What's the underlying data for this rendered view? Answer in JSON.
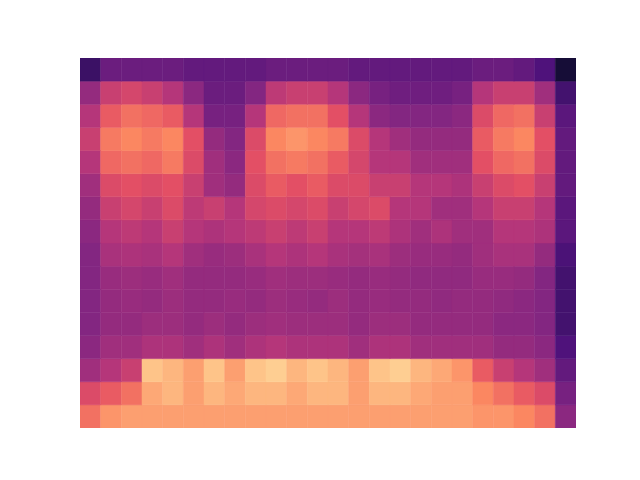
{
  "chart_data": {
    "type": "heatmap",
    "color": "magma",
    "tick_labels": false,
    "xlim": [
      0,
      24
    ],
    "ylim": [
      0,
      16
    ],
    "color_range": [
      0,
      1
    ],
    "cells": [
      [
        0.7,
        0.78,
        0.8,
        0.8,
        0.8,
        0.8,
        0.8,
        0.8,
        0.8,
        0.8,
        0.8,
        0.8,
        0.8,
        0.8,
        0.8,
        0.8,
        0.8,
        0.8,
        0.8,
        0.78,
        0.78,
        0.75,
        0.7,
        0.4
      ],
      [
        0.6,
        0.65,
        0.7,
        0.82,
        0.85,
        0.8,
        0.85,
        0.82,
        0.85,
        0.85,
        0.82,
        0.85,
        0.85,
        0.8,
        0.85,
        0.85,
        0.82,
        0.8,
        0.8,
        0.75,
        0.7,
        0.65,
        0.6,
        0.35
      ],
      [
        0.45,
        0.5,
        0.55,
        0.88,
        0.85,
        0.8,
        0.88,
        0.8,
        0.88,
        0.9,
        0.85,
        0.88,
        0.85,
        0.8,
        0.88,
        0.9,
        0.85,
        0.82,
        0.78,
        0.65,
        0.55,
        0.5,
        0.45,
        0.3
      ],
      [
        0.4,
        0.45,
        0.45,
        0.48,
        0.48,
        0.45,
        0.48,
        0.45,
        0.48,
        0.5,
        0.48,
        0.48,
        0.48,
        0.45,
        0.48,
        0.48,
        0.45,
        0.45,
        0.45,
        0.45,
        0.42,
        0.42,
        0.4,
        0.25
      ],
      [
        0.38,
        0.42,
        0.42,
        0.44,
        0.44,
        0.42,
        0.44,
        0.42,
        0.44,
        0.45,
        0.44,
        0.44,
        0.44,
        0.42,
        0.44,
        0.44,
        0.42,
        0.42,
        0.42,
        0.42,
        0.4,
        0.4,
        0.38,
        0.22
      ],
      [
        0.38,
        0.42,
        0.43,
        0.42,
        0.44,
        0.42,
        0.42,
        0.43,
        0.42,
        0.44,
        0.43,
        0.42,
        0.44,
        0.42,
        0.43,
        0.42,
        0.42,
        0.41,
        0.42,
        0.42,
        0.41,
        0.4,
        0.38,
        0.22
      ],
      [
        0.38,
        0.43,
        0.44,
        0.43,
        0.45,
        0.42,
        0.42,
        0.42,
        0.43,
        0.45,
        0.44,
        0.44,
        0.43,
        0.42,
        0.43,
        0.42,
        0.41,
        0.41,
        0.41,
        0.43,
        0.43,
        0.42,
        0.38,
        0.22
      ],
      [
        0.38,
        0.47,
        0.48,
        0.47,
        0.5,
        0.45,
        0.43,
        0.44,
        0.47,
        0.5,
        0.48,
        0.5,
        0.47,
        0.46,
        0.47,
        0.44,
        0.43,
        0.43,
        0.42,
        0.45,
        0.47,
        0.47,
        0.42,
        0.24
      ],
      [
        0.4,
        0.5,
        0.52,
        0.5,
        0.55,
        0.5,
        0.48,
        0.5,
        0.52,
        0.55,
        0.52,
        0.55,
        0.5,
        0.5,
        0.52,
        0.48,
        0.45,
        0.48,
        0.45,
        0.45,
        0.5,
        0.5,
        0.48,
        0.28
      ],
      [
        0.42,
        0.55,
        0.58,
        0.55,
        0.6,
        0.52,
        0.55,
        0.5,
        0.58,
        0.6,
        0.58,
        0.6,
        0.55,
        0.58,
        0.6,
        0.5,
        0.5,
        0.45,
        0.45,
        0.5,
        0.55,
        0.55,
        0.5,
        0.28
      ],
      [
        0.45,
        0.6,
        0.62,
        0.6,
        0.62,
        0.55,
        0.45,
        0.42,
        0.6,
        0.65,
        0.62,
        0.65,
        0.6,
        0.6,
        0.55,
        0.55,
        0.5,
        0.5,
        0.48,
        0.55,
        0.6,
        0.62,
        0.55,
        0.3
      ],
      [
        0.5,
        0.68,
        0.7,
        0.68,
        0.72,
        0.6,
        0.45,
        0.4,
        0.62,
        0.7,
        0.72,
        0.7,
        0.65,
        0.58,
        0.5,
        0.5,
        0.45,
        0.45,
        0.45,
        0.62,
        0.68,
        0.7,
        0.6,
        0.3
      ],
      [
        0.55,
        0.72,
        0.75,
        0.72,
        0.75,
        0.62,
        0.42,
        0.38,
        0.6,
        0.75,
        0.78,
        0.75,
        0.72,
        0.6,
        0.5,
        0.45,
        0.42,
        0.42,
        0.42,
        0.65,
        0.72,
        0.75,
        0.62,
        0.3
      ],
      [
        0.5,
        0.65,
        0.7,
        0.68,
        0.65,
        0.5,
        0.35,
        0.35,
        0.5,
        0.68,
        0.7,
        0.7,
        0.62,
        0.5,
        0.4,
        0.38,
        0.38,
        0.38,
        0.4,
        0.6,
        0.68,
        0.7,
        0.55,
        0.28
      ],
      [
        0.42,
        0.55,
        0.58,
        0.55,
        0.5,
        0.4,
        0.32,
        0.32,
        0.38,
        0.52,
        0.55,
        0.55,
        0.5,
        0.4,
        0.35,
        0.33,
        0.33,
        0.33,
        0.35,
        0.5,
        0.55,
        0.55,
        0.45,
        0.22
      ],
      [
        0.2,
        0.32,
        0.32,
        0.32,
        0.32,
        0.3,
        0.3,
        0.3,
        0.3,
        0.32,
        0.32,
        0.32,
        0.32,
        0.3,
        0.3,
        0.3,
        0.3,
        0.3,
        0.3,
        0.32,
        0.32,
        0.3,
        0.25,
        0.1
      ]
    ]
  }
}
